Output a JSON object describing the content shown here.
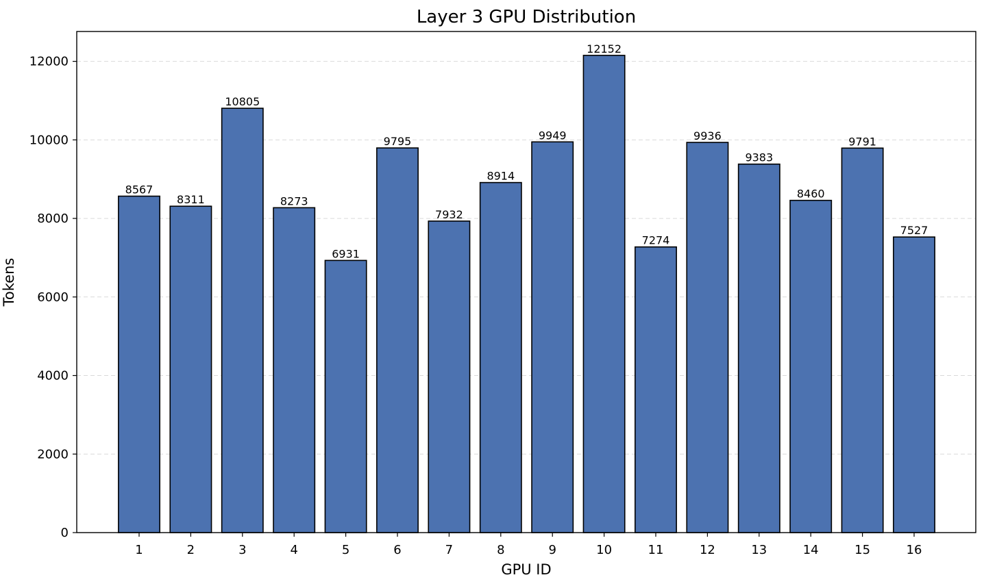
{
  "chart_data": {
    "type": "bar",
    "title": "Layer 3 GPU Distribution",
    "xlabel": "GPU ID",
    "ylabel": "Tokens",
    "categories": [
      "1",
      "2",
      "3",
      "4",
      "5",
      "6",
      "7",
      "8",
      "9",
      "10",
      "11",
      "12",
      "13",
      "14",
      "15",
      "16"
    ],
    "values": [
      8567,
      8311,
      10805,
      8273,
      6931,
      9795,
      7932,
      8914,
      9949,
      12152,
      7274,
      9936,
      9383,
      8460,
      9791,
      7527
    ],
    "data_labels": [
      "8567",
      "8311",
      "10805",
      "8273",
      "6931",
      "9795",
      "7932",
      "8914",
      "9949",
      "12152",
      "7274",
      "9936",
      "9383",
      "8460",
      "9791",
      "7527"
    ],
    "y_ticks": [
      0,
      2000,
      4000,
      6000,
      8000,
      10000,
      12000
    ],
    "y_tick_labels": [
      "0",
      "2000",
      "4000",
      "6000",
      "8000",
      "10000",
      "12000"
    ],
    "ylim": [
      0,
      12760
    ],
    "grid": "horizontal dashed",
    "legend": "none",
    "bar_color": "#4c72b0",
    "edge_color": "#000000"
  }
}
